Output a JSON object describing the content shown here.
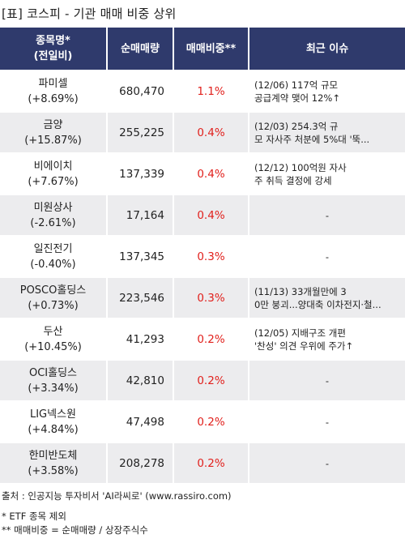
{
  "title": "[표] 코스피 - 기관 매매 비중 상위",
  "columns": {
    "name_line1": "종목명*",
    "name_line2": "(전일비)",
    "net_volume": "순매매량",
    "ratio": "매매비중**",
    "issue": "최근 이슈"
  },
  "rows": [
    {
      "name": "파미셀",
      "change": "(+8.69%)",
      "volume": "680,470",
      "ratio": "1.1%",
      "issue": "(12/06) 117억 규모\n공급계약 맺어 12%↑"
    },
    {
      "name": "금양",
      "change": "(+15.87%)",
      "volume": "255,225",
      "ratio": "0.4%",
      "issue": "(12/03) 254.3억 규\n모 자사주 처분에 5%대 '뚝..."
    },
    {
      "name": "비에이치",
      "change": "(+7.67%)",
      "volume": "137,339",
      "ratio": "0.4%",
      "issue": "(12/12) 100억원 자사\n주 취득 결정에 강세"
    },
    {
      "name": "미원상사",
      "change": "(-2.61%)",
      "volume": "17,164",
      "ratio": "0.4%",
      "issue": "-"
    },
    {
      "name": "일진전기",
      "change": "(-0.40%)",
      "volume": "137,345",
      "ratio": "0.3%",
      "issue": "-"
    },
    {
      "name": "POSCO홀딩스",
      "change": "(+0.73%)",
      "volume": "223,546",
      "ratio": "0.3%",
      "issue": "(11/13) 33개월만에 3\n0만 붕괴...양대축 이차전지·철..."
    },
    {
      "name": "두산",
      "change": "(+10.45%)",
      "volume": "41,293",
      "ratio": "0.2%",
      "issue": "(12/05) 지배구조 개편\n'찬성' 의견 우위에 주가↑"
    },
    {
      "name": "OCI홀딩스",
      "change": "(+3.34%)",
      "volume": "42,810",
      "ratio": "0.2%",
      "issue": "-"
    },
    {
      "name": "LIG넥스원",
      "change": "(+4.84%)",
      "volume": "47,498",
      "ratio": "0.2%",
      "issue": "-"
    },
    {
      "name": "한미반도체",
      "change": "(+3.58%)",
      "volume": "208,278",
      "ratio": "0.2%",
      "issue": "-"
    }
  ],
  "footer": {
    "source": "출처 : 인공지능 투자비서 'AI라씨로' (www.rassiro.com)",
    "note1": "* ETF 종목 제외",
    "note2": "** 매매비중 = 순매매량 / 상장주식수"
  },
  "colors": {
    "header_bg": "#2f3a6c",
    "ratio_text": "#e1201c",
    "stripe": "#ececee"
  }
}
